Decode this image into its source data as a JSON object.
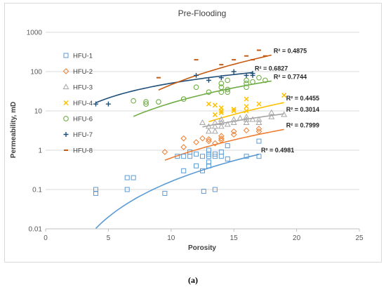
{
  "caption": "(a)",
  "chart_data": {
    "type": "scatter",
    "title": "Pre-Flooding",
    "xlabel": "Porosity",
    "ylabel": "Permeability, mD",
    "xlim": [
      0,
      25
    ],
    "ylim": [
      0.01,
      1000
    ],
    "yscale": "log",
    "x_ticks": [
      "0",
      "5",
      "10",
      "15",
      "20",
      "25"
    ],
    "y_ticks": [
      "0.01",
      "0.1",
      "1",
      "10",
      "100",
      "1000"
    ],
    "grid": "horizontal",
    "legend_position": "left",
    "series": [
      {
        "name": "HFU-1",
        "color": "#5b9bd5",
        "marker": "square",
        "points": [
          [
            4,
            0.08
          ],
          [
            4,
            0.1
          ],
          [
            6.5,
            0.1
          ],
          [
            6.5,
            0.2
          ],
          [
            7,
            0.2
          ],
          [
            9.5,
            0.08
          ],
          [
            10.5,
            0.7
          ],
          [
            11,
            0.3
          ],
          [
            11,
            0.7
          ],
          [
            11.5,
            0.7
          ],
          [
            11.5,
            0.9
          ],
          [
            12,
            0.4
          ],
          [
            12,
            0.8
          ],
          [
            12.5,
            0.3
          ],
          [
            12.5,
            0.7
          ],
          [
            12.6,
            0.09
          ],
          [
            13,
            0.4
          ],
          [
            13,
            0.5
          ],
          [
            13,
            0.7
          ],
          [
            13,
            0.8
          ],
          [
            13,
            1
          ],
          [
            13.5,
            0.1
          ],
          [
            13.5,
            0.7
          ],
          [
            13.5,
            0.8
          ],
          [
            14,
            0.7
          ],
          [
            14,
            0.9
          ],
          [
            14.5,
            0.6
          ],
          [
            14.5,
            1.3
          ],
          [
            16,
            0.7
          ],
          [
            17,
            0.7
          ],
          [
            17,
            1.7
          ]
        ],
        "trend": {
          "a": 0.00016,
          "b": 3.0,
          "x_range": [
            4,
            17
          ]
        },
        "r2_label": "R² = 0.4981"
      },
      {
        "name": "HFU-2",
        "color": "#ed7d31",
        "marker": "diamond",
        "points": [
          [
            9.5,
            0.9
          ],
          [
            11,
            1.2
          ],
          [
            11,
            2
          ],
          [
            12,
            1.6
          ],
          [
            12.5,
            2
          ],
          [
            13,
            1.7
          ],
          [
            13,
            1.9
          ],
          [
            13.5,
            1.5
          ],
          [
            14,
            1.8
          ],
          [
            14,
            2
          ],
          [
            14,
            2.3
          ],
          [
            15,
            2.5
          ],
          [
            15,
            3
          ],
          [
            16,
            3.2
          ],
          [
            17,
            3
          ],
          [
            17,
            3.5
          ]
        ],
        "trend": {
          "a": 0.0016,
          "b": 2.6,
          "x_range": [
            9.5,
            19
          ]
        },
        "r2_label": "R² = 0.7999"
      },
      {
        "name": "HFU-3",
        "color": "#a5a5a5",
        "marker": "triangle",
        "points": [
          [
            12.5,
            5
          ],
          [
            13,
            3
          ],
          [
            13,
            4
          ],
          [
            13.5,
            3
          ],
          [
            13.5,
            4
          ],
          [
            13.5,
            5
          ],
          [
            14,
            4
          ],
          [
            14,
            5
          ],
          [
            14,
            6
          ],
          [
            14.5,
            4.5
          ],
          [
            15,
            5
          ],
          [
            15,
            6
          ],
          [
            15.5,
            6.5
          ],
          [
            16,
            5
          ],
          [
            16,
            6
          ],
          [
            16,
            7
          ],
          [
            16.5,
            6
          ],
          [
            17,
            5
          ],
          [
            17,
            6
          ],
          [
            18,
            7
          ],
          [
            18,
            9
          ],
          [
            19,
            8
          ]
        ],
        "trend": {
          "a": 0.0385,
          "b": 1.83,
          "x_range": [
            12.5,
            19
          ]
        },
        "r2_label": "R² = 0.3014"
      },
      {
        "name": "HFU-4",
        "color": "#ffc000",
        "marker": "x",
        "points": [
          [
            13,
            15
          ],
          [
            13.5,
            8
          ],
          [
            13.5,
            14
          ],
          [
            14,
            9
          ],
          [
            14,
            10
          ],
          [
            14,
            12
          ],
          [
            15,
            10
          ],
          [
            15,
            11
          ],
          [
            16,
            10
          ],
          [
            16,
            13
          ],
          [
            16,
            20
          ],
          [
            17,
            15
          ],
          [
            19,
            25
          ]
        ],
        "trend": {
          "a": 0.00275,
          "b": 2.95,
          "x_range": [
            13,
            19
          ]
        },
        "r2_label": "R² = 0.4455"
      },
      {
        "name": "HFU-6",
        "color": "#70ad47",
        "marker": "circle",
        "points": [
          [
            7,
            18
          ],
          [
            8,
            15
          ],
          [
            8,
            17
          ],
          [
            9,
            17
          ],
          [
            11,
            20
          ],
          [
            12,
            40
          ],
          [
            13,
            30
          ],
          [
            14,
            30
          ],
          [
            14,
            40
          ],
          [
            14,
            50
          ],
          [
            14.5,
            30
          ],
          [
            14.5,
            35
          ],
          [
            14.5,
            60
          ],
          [
            16,
            40
          ],
          [
            16,
            50
          ],
          [
            16,
            60
          ],
          [
            16.5,
            55
          ],
          [
            17,
            70
          ],
          [
            17.5,
            60
          ]
        ],
        "trend": {
          "a": 0.1,
          "b": 2.2,
          "x_range": [
            7,
            18
          ]
        },
        "r2_label": "R² = 0.7744"
      },
      {
        "name": "HFU-7",
        "color": "#1f4e79",
        "marker": "plus",
        "points": [
          [
            4,
            15
          ],
          [
            5,
            15
          ],
          [
            12,
            80
          ],
          [
            13,
            60
          ],
          [
            14,
            70
          ],
          [
            15,
            100
          ],
          [
            16,
            80
          ],
          [
            16.5,
            80
          ],
          [
            16.5,
            90
          ]
        ],
        "trend": {
          "a": 2.85,
          "b": 1.25,
          "x_range": [
            4,
            16.5
          ]
        },
        "r2_label": "R² = 0.6827"
      },
      {
        "name": "HFU-8",
        "color": "#c55a11",
        "marker": "dash",
        "points": [
          [
            9,
            70
          ],
          [
            12,
            200
          ],
          [
            14,
            150
          ],
          [
            15,
            200
          ],
          [
            16,
            250
          ],
          [
            16.5,
            200
          ],
          [
            17,
            350
          ],
          [
            17.5,
            250
          ]
        ],
        "trend": {
          "a": 0.052,
          "b": 2.95,
          "x_range": [
            9,
            18
          ]
        },
        "r2_label": "R² = 0.4875"
      }
    ]
  }
}
